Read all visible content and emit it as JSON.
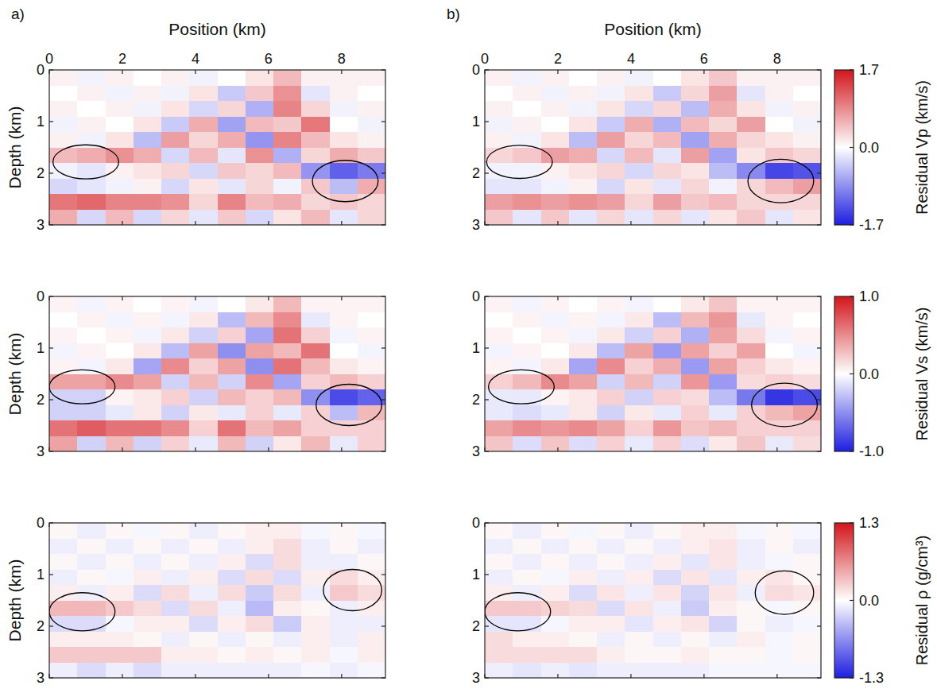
{
  "chart_data": [
    {
      "type": "heatmap",
      "panel": "a)",
      "x_label": "Position (km)",
      "y_label": "Depth (km)",
      "xlim": [
        0,
        9.2
      ],
      "ylim": [
        0,
        3
      ],
      "xticks": [
        0,
        2,
        4,
        6,
        8
      ],
      "yticks": [
        0,
        1,
        2,
        3
      ],
      "tick_labels": true,
      "zlim": [
        -1.7,
        1.7
      ],
      "highlights": [
        {
          "x": 1.0,
          "y": 1.78,
          "rx": 0.9,
          "ry": 0.33
        },
        {
          "x": 8.1,
          "y": 2.15,
          "rx": 0.9,
          "ry": 0.4
        }
      ],
      "z": [
        [
          0.1,
          -0.1,
          0.1,
          0,
          0.1,
          -0.1,
          0,
          0.2,
          0.5,
          0.1,
          0.1,
          0.1
        ],
        [
          0,
          0.1,
          -0.1,
          0.1,
          -0.1,
          0.2,
          -0.4,
          0.4,
          0.8,
          -0.2,
          0.1,
          0
        ],
        [
          0.1,
          0,
          0.1,
          -0.1,
          0.2,
          -0.3,
          0.3,
          -0.6,
          0.9,
          0.3,
          -0.1,
          0.1
        ],
        [
          -0.1,
          0.1,
          0,
          0.2,
          -0.4,
          0.6,
          -0.7,
          0.5,
          0.4,
          1.0,
          0,
          -0.1
        ],
        [
          0.1,
          -0.1,
          0.2,
          -0.5,
          0.7,
          0.3,
          0.6,
          -0.8,
          0.9,
          0.5,
          0.2,
          0.1
        ],
        [
          0.5,
          0.6,
          0.8,
          0.6,
          -0.3,
          0.5,
          -0.2,
          0.8,
          -0.6,
          0.3,
          0.6,
          0.4
        ],
        [
          -0.1,
          -0.2,
          0.1,
          0.2,
          0.3,
          -0.3,
          0.4,
          0.3,
          0.5,
          -0.8,
          -1.2,
          -1.0
        ],
        [
          -0.3,
          -0.2,
          -0.1,
          0.1,
          -0.3,
          0.2,
          -0.2,
          0.3,
          -0.1,
          0.4,
          -0.5,
          0.6
        ],
        [
          1.0,
          1.1,
          0.9,
          0.9,
          0.8,
          0.3,
          0.9,
          0.5,
          0.6,
          0.3,
          0.4,
          0.3
        ],
        [
          0.6,
          -0.3,
          0.5,
          -0.3,
          0.3,
          -0.2,
          0.4,
          -0.3,
          0.2,
          0.5,
          -0.2,
          0.3
        ]
      ]
    },
    {
      "type": "heatmap",
      "panel": "b)",
      "x_label": "Position (km)",
      "xlim": [
        0,
        9.2
      ],
      "ylim": [
        0,
        3
      ],
      "xticks": [
        0,
        2,
        4,
        6,
        8
      ],
      "yticks": [
        0,
        1,
        2,
        3
      ],
      "tick_labels": true,
      "zlim": [
        -1.7,
        1.7
      ],
      "colorbar_label": "Residual Vp (km/s)",
      "colorbar_ticks": [
        1.7,
        {
          "value": 0,
          "label": "0.0"
        },
        -1.7
      ],
      "highlights": [
        {
          "x": 0.95,
          "y": 1.78,
          "rx": 0.9,
          "ry": 0.32
        },
        {
          "x": 8.1,
          "y": 2.15,
          "rx": 0.9,
          "ry": 0.42
        }
      ],
      "z": [
        [
          0.1,
          -0.1,
          0.1,
          0,
          0.1,
          -0.1,
          0,
          0.2,
          0.4,
          0.1,
          0.1,
          0.1
        ],
        [
          0,
          0.1,
          -0.1,
          0.1,
          -0.1,
          0.2,
          -0.4,
          0.3,
          0.7,
          -0.2,
          0.1,
          0
        ],
        [
          0.1,
          0,
          0.1,
          -0.1,
          0.2,
          -0.3,
          0.3,
          -0.5,
          0.6,
          0.2,
          -0.1,
          0.1
        ],
        [
          -0.1,
          0.1,
          0,
          0.2,
          -0.4,
          0.6,
          -0.6,
          0.5,
          0.3,
          0.7,
          0,
          -0.1
        ],
        [
          0.1,
          -0.1,
          0.2,
          -0.5,
          0.7,
          0.3,
          0.5,
          -0.7,
          0.6,
          0.3,
          0.2,
          0.1
        ],
        [
          0.3,
          0.4,
          0.7,
          0.6,
          -0.3,
          0.5,
          -0.2,
          0.7,
          -0.7,
          0.2,
          0.4,
          0.3
        ],
        [
          -0.1,
          -0.1,
          0.1,
          0.2,
          0.3,
          -0.3,
          0.3,
          0.2,
          -0.5,
          -0.9,
          -1.4,
          -1.3
        ],
        [
          -0.2,
          -0.2,
          -0.1,
          0.1,
          -0.3,
          0.2,
          -0.2,
          0.3,
          -0.1,
          0.3,
          0.5,
          0.7
        ],
        [
          0.7,
          0.8,
          0.7,
          0.8,
          0.7,
          0.3,
          0.7,
          0.4,
          0.5,
          0.3,
          0.3,
          0.3
        ],
        [
          0.4,
          -0.2,
          0.4,
          -0.2,
          0.3,
          -0.2,
          0.3,
          -0.2,
          0.2,
          0.4,
          -0.2,
          0.2
        ]
      ]
    },
    {
      "type": "heatmap",
      "y_label": "Depth (km)",
      "xlim": [
        0,
        9.2
      ],
      "ylim": [
        0,
        3
      ],
      "xticks": [
        0,
        2,
        4,
        6,
        8
      ],
      "yticks": [
        0,
        1,
        2,
        3
      ],
      "tick_labels": "y",
      "zlim": [
        -1,
        1
      ],
      "highlights": [
        {
          "x": 0.9,
          "y": 1.75,
          "rx": 0.9,
          "ry": 0.33
        },
        {
          "x": 8.2,
          "y": 2.1,
          "rx": 0.9,
          "ry": 0.4
        }
      ],
      "z": [
        [
          0.05,
          -0.05,
          0.05,
          0,
          0.05,
          -0.05,
          0,
          0.1,
          0.3,
          0.05,
          0.05,
          0.05
        ],
        [
          0,
          0.05,
          -0.05,
          0.05,
          -0.05,
          0.1,
          -0.3,
          0.3,
          0.5,
          -0.1,
          0.05,
          0
        ],
        [
          0.05,
          0,
          0.05,
          -0.05,
          0.1,
          -0.2,
          0.2,
          -0.4,
          0.6,
          0.2,
          -0.05,
          0.05
        ],
        [
          -0.05,
          0.05,
          0,
          0.1,
          -0.3,
          0.4,
          -0.5,
          0.4,
          0.3,
          0.6,
          0,
          -0.05
        ],
        [
          0.05,
          -0.05,
          0.1,
          -0.4,
          0.5,
          0.2,
          0.4,
          -0.5,
          0.6,
          0.3,
          0.1,
          0.05
        ],
        [
          0.4,
          0.4,
          0.5,
          0.4,
          -0.2,
          0.3,
          -0.2,
          0.5,
          -0.4,
          0.2,
          0.3,
          0.2
        ],
        [
          -0.2,
          -0.2,
          0.05,
          0.1,
          0.2,
          -0.2,
          0.3,
          0.2,
          0.3,
          -0.5,
          -0.8,
          -0.7
        ],
        [
          -0.2,
          -0.2,
          -0.1,
          0.1,
          -0.2,
          0.1,
          -0.1,
          0.2,
          -0.1,
          0.2,
          -0.3,
          0.3
        ],
        [
          0.6,
          0.7,
          0.6,
          0.6,
          0.5,
          0.2,
          0.6,
          0.3,
          0.4,
          0.2,
          0.2,
          0.2
        ],
        [
          0.4,
          -0.2,
          0.3,
          -0.2,
          0.2,
          -0.1,
          0.3,
          -0.2,
          0.1,
          0.3,
          -0.1,
          0.2
        ]
      ]
    },
    {
      "type": "heatmap",
      "xlim": [
        0,
        9.2
      ],
      "ylim": [
        0,
        3
      ],
      "xticks": [
        0,
        2,
        4,
        6,
        8
      ],
      "yticks": [
        0,
        1,
        2,
        3
      ],
      "tick_labels": "y",
      "zlim": [
        -1,
        1
      ],
      "colorbar_label": "Residual Vs (km/s)",
      "colorbar_ticks": [
        {
          "value": 1,
          "label": "1.0"
        },
        {
          "value": 0,
          "label": "0.0"
        },
        {
          "value": -1,
          "label": "-1.0"
        }
      ],
      "highlights": [
        {
          "x": 1.0,
          "y": 1.75,
          "rx": 0.9,
          "ry": 0.33
        },
        {
          "x": 8.2,
          "y": 2.1,
          "rx": 0.9,
          "ry": 0.42
        }
      ],
      "z": [
        [
          0.05,
          -0.05,
          0.05,
          0,
          0.05,
          -0.05,
          0,
          0.1,
          0.25,
          0.05,
          0.05,
          0.05
        ],
        [
          0,
          0.05,
          -0.05,
          0.05,
          -0.05,
          0.1,
          -0.3,
          0.3,
          0.45,
          -0.1,
          0.05,
          0
        ],
        [
          0.05,
          0,
          0.05,
          -0.05,
          0.1,
          -0.2,
          0.2,
          -0.35,
          0.4,
          0.15,
          -0.05,
          0.05
        ],
        [
          -0.05,
          0.05,
          0,
          0.1,
          -0.3,
          0.4,
          -0.45,
          0.4,
          0.2,
          0.4,
          0,
          -0.05
        ],
        [
          0.05,
          -0.05,
          0.1,
          -0.4,
          0.5,
          0.2,
          0.35,
          -0.45,
          0.4,
          0.2,
          0.1,
          0.05
        ],
        [
          0.2,
          0.3,
          0.5,
          0.4,
          -0.2,
          0.3,
          -0.2,
          0.45,
          -0.45,
          0.15,
          0.2,
          0.15
        ],
        [
          -0.1,
          -0.1,
          0.05,
          0.1,
          0.2,
          -0.2,
          0.2,
          0.15,
          -0.3,
          -0.6,
          -0.9,
          -0.8
        ],
        [
          -0.1,
          -0.15,
          -0.1,
          0.1,
          -0.2,
          0.1,
          -0.1,
          0.2,
          -0.1,
          0.2,
          0.3,
          0.4
        ],
        [
          0.4,
          0.5,
          0.45,
          0.5,
          0.4,
          0.2,
          0.45,
          0.25,
          0.3,
          0.2,
          0.2,
          0.2
        ],
        [
          0.25,
          -0.15,
          0.25,
          -0.15,
          0.2,
          -0.1,
          0.2,
          -0.15,
          0.1,
          0.25,
          -0.1,
          0.15
        ]
      ]
    },
    {
      "type": "heatmap",
      "y_label": "Depth (km)",
      "xlim": [
        0,
        9.2
      ],
      "ylim": [
        0,
        3
      ],
      "xticks": [
        0,
        2,
        4,
        6,
        8
      ],
      "yticks": [
        0,
        1,
        2,
        3
      ],
      "tick_labels": "y",
      "zlim": [
        -1.3,
        1.3
      ],
      "highlights": [
        {
          "x": 0.9,
          "y": 1.72,
          "rx": 0.9,
          "ry": 0.37
        },
        {
          "x": 8.3,
          "y": 1.3,
          "rx": 0.8,
          "ry": 0.4
        }
      ],
      "z": [
        [
          0.05,
          -0.1,
          0.05,
          -0.05,
          0.05,
          -0.1,
          0.05,
          0.1,
          0.1,
          -0.05,
          0.05,
          -0.05
        ],
        [
          -0.1,
          0.05,
          -0.1,
          0.05,
          -0.1,
          0.05,
          -0.1,
          0.1,
          0.2,
          -0.1,
          0.05,
          -0.1
        ],
        [
          0.05,
          -0.1,
          0.05,
          -0.1,
          0.05,
          -0.1,
          0.1,
          -0.2,
          0.2,
          -0.1,
          -0.1,
          0.05
        ],
        [
          -0.1,
          0.05,
          -0.05,
          0.1,
          -0.1,
          0.1,
          -0.2,
          0.2,
          -0.2,
          0.1,
          0.2,
          0.1
        ],
        [
          0.1,
          -0.1,
          0.1,
          -0.2,
          0.2,
          -0.1,
          0.2,
          -0.3,
          0.2,
          -0.1,
          0.3,
          0.2
        ],
        [
          0.4,
          0.4,
          0.3,
          0.2,
          -0.2,
          0.2,
          -0.1,
          -0.4,
          0.1,
          0.05,
          -0.1,
          0.1
        ],
        [
          -0.2,
          -0.2,
          -0.05,
          0.1,
          0.1,
          -0.2,
          0.1,
          0.2,
          -0.3,
          0.1,
          -0.1,
          -0.1
        ],
        [
          0.1,
          0.1,
          0.1,
          0.05,
          -0.1,
          0.05,
          -0.1,
          0.05,
          -0.1,
          0.1,
          -0.1,
          0.1
        ],
        [
          0.3,
          0.3,
          0.3,
          0.3,
          0.1,
          0.1,
          0.05,
          0.1,
          0.05,
          0.1,
          -0.05,
          0.1
        ],
        [
          -0.1,
          -0.2,
          -0.1,
          -0.2,
          -0.1,
          -0.1,
          -0.1,
          -0.1,
          -0.1,
          -0.05,
          -0.1,
          -0.05
        ]
      ]
    },
    {
      "type": "heatmap",
      "xlim": [
        0,
        9.2
      ],
      "ylim": [
        0,
        3
      ],
      "xticks": [
        0,
        2,
        4,
        6,
        8
      ],
      "yticks": [
        0,
        1,
        2,
        3
      ],
      "tick_labels": "y",
      "zlim": [
        -1.3,
        1.3
      ],
      "colorbar_label": "Residual ρ (g/cm³)",
      "colorbar_ticks": [
        1.3,
        {
          "value": 0,
          "label": "0.0"
        },
        -1.3
      ],
      "highlights": [
        {
          "x": 0.9,
          "y": 1.72,
          "rx": 0.9,
          "ry": 0.37
        },
        {
          "x": 8.2,
          "y": 1.35,
          "rx": 0.8,
          "ry": 0.42
        }
      ],
      "z": [
        [
          0.05,
          -0.1,
          0.05,
          -0.05,
          0.05,
          -0.1,
          0.05,
          0.1,
          0.1,
          -0.05,
          0.05,
          -0.05
        ],
        [
          -0.1,
          0.05,
          -0.1,
          0.05,
          -0.1,
          0.05,
          -0.1,
          0.1,
          0.15,
          -0.1,
          0.05,
          -0.1
        ],
        [
          0.05,
          -0.1,
          0.05,
          -0.1,
          0.05,
          -0.1,
          0.1,
          -0.15,
          0.15,
          -0.1,
          -0.05,
          0.05
        ],
        [
          -0.1,
          0.05,
          -0.05,
          0.1,
          -0.1,
          0.1,
          -0.2,
          0.15,
          -0.15,
          0.1,
          0.15,
          0.05
        ],
        [
          0.1,
          -0.1,
          0.1,
          -0.2,
          0.15,
          -0.1,
          0.15,
          -0.25,
          0.15,
          -0.1,
          0.2,
          0.15
        ],
        [
          0.3,
          0.3,
          0.25,
          0.2,
          -0.2,
          0.15,
          -0.1,
          -0.3,
          0.1,
          0.05,
          -0.05,
          0.05
        ],
        [
          -0.15,
          -0.15,
          -0.05,
          0.1,
          0.1,
          -0.15,
          0.1,
          0.15,
          -0.25,
          0.05,
          -0.1,
          -0.05
        ],
        [
          0.2,
          0.1,
          0.1,
          0.05,
          -0.1,
          0.05,
          -0.1,
          0.05,
          -0.1,
          0.1,
          -0.05,
          0.05
        ],
        [
          0.2,
          0.2,
          0.2,
          0.2,
          0.1,
          0.05,
          0.05,
          0.1,
          0.05,
          0.05,
          -0.05,
          0.05
        ],
        [
          -0.1,
          -0.15,
          -0.1,
          -0.15,
          -0.1,
          -0.1,
          -0.1,
          -0.1,
          -0.05,
          -0.05,
          -0.05,
          -0.05
        ]
      ]
    }
  ]
}
